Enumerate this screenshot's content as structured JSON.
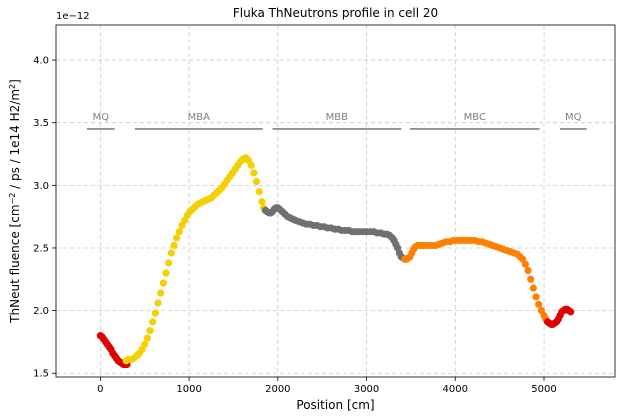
{
  "chart_data": {
    "type": "scatter",
    "title": "Fluka ThNeutrons profile in cell 20",
    "xlabel": "Position [cm]",
    "ylabel_parts": [
      "ThNeut fluence [cm",
      "−2",
      " / ps / 1e14 H2/m",
      "2",
      "]"
    ],
    "y_offset_text": "1e−12",
    "xlim": [
      -500,
      5800
    ],
    "ylim": [
      1.47,
      4.28
    ],
    "x_ticks": [
      0,
      1000,
      2000,
      3000,
      4000,
      5000
    ],
    "y_ticks": [
      1.5,
      2.0,
      2.5,
      3.0,
      3.5,
      4.0
    ],
    "grid": true,
    "regions": [
      {
        "label": "MQ",
        "x0": -150,
        "x1": 160,
        "y": 3.45
      },
      {
        "label": "MBA",
        "x0": 390,
        "x1": 1830,
        "y": 3.45
      },
      {
        "label": "MBB",
        "x0": 1940,
        "x1": 3390,
        "y": 3.45
      },
      {
        "label": "MBC",
        "x0": 3490,
        "x1": 4950,
        "y": 3.45
      },
      {
        "label": "MQ",
        "x0": 5180,
        "x1": 5480,
        "y": 3.45
      }
    ],
    "series": [
      {
        "color": "#e00000",
        "points": [
          [
            0,
            1.8
          ],
          [
            20,
            1.79
          ],
          [
            40,
            1.77
          ],
          [
            60,
            1.75
          ],
          [
            80,
            1.73
          ],
          [
            100,
            1.71
          ],
          [
            120,
            1.69
          ],
          [
            140,
            1.66
          ],
          [
            160,
            1.64
          ],
          [
            180,
            1.62
          ],
          [
            200,
            1.6
          ],
          [
            220,
            1.59
          ],
          [
            240,
            1.58
          ],
          [
            260,
            1.57
          ],
          [
            280,
            1.57
          ],
          [
            300,
            1.57
          ]
        ]
      },
      {
        "color": "#f5d000",
        "points": [
          [
            290,
            1.6
          ],
          [
            320,
            1.61
          ],
          [
            350,
            1.61
          ],
          [
            380,
            1.62
          ],
          [
            410,
            1.64
          ],
          [
            440,
            1.66
          ],
          [
            470,
            1.69
          ],
          [
            500,
            1.73
          ],
          [
            530,
            1.78
          ],
          [
            560,
            1.84
          ],
          [
            590,
            1.91
          ],
          [
            620,
            1.98
          ],
          [
            650,
            2.06
          ],
          [
            680,
            2.14
          ],
          [
            710,
            2.22
          ],
          [
            740,
            2.3
          ],
          [
            770,
            2.38
          ],
          [
            800,
            2.46
          ],
          [
            830,
            2.52
          ],
          [
            860,
            2.58
          ],
          [
            890,
            2.63
          ],
          [
            920,
            2.68
          ],
          [
            950,
            2.72
          ],
          [
            980,
            2.76
          ],
          [
            1010,
            2.79
          ],
          [
            1040,
            2.81
          ],
          [
            1070,
            2.83
          ],
          [
            1100,
            2.85
          ],
          [
            1130,
            2.86
          ],
          [
            1160,
            2.87
          ],
          [
            1190,
            2.88
          ],
          [
            1220,
            2.89
          ],
          [
            1250,
            2.9
          ],
          [
            1280,
            2.92
          ],
          [
            1310,
            2.94
          ],
          [
            1340,
            2.96
          ],
          [
            1370,
            2.98
          ],
          [
            1400,
            3.01
          ],
          [
            1430,
            3.04
          ],
          [
            1460,
            3.07
          ],
          [
            1490,
            3.1
          ],
          [
            1520,
            3.13
          ],
          [
            1550,
            3.16
          ],
          [
            1580,
            3.19
          ],
          [
            1610,
            3.21
          ],
          [
            1640,
            3.22
          ],
          [
            1670,
            3.2
          ],
          [
            1700,
            3.16
          ],
          [
            1730,
            3.1
          ],
          [
            1760,
            3.03
          ],
          [
            1790,
            2.95
          ],
          [
            1820,
            2.87
          ],
          [
            1840,
            2.82
          ]
        ]
      },
      {
        "color": "#707070",
        "points": [
          [
            1860,
            2.8
          ],
          [
            1880,
            2.79
          ],
          [
            1900,
            2.78
          ],
          [
            1920,
            2.78
          ],
          [
            1940,
            2.79
          ],
          [
            1960,
            2.81
          ],
          [
            1980,
            2.82
          ],
          [
            2000,
            2.82
          ],
          [
            2020,
            2.81
          ],
          [
            2050,
            2.79
          ],
          [
            2080,
            2.77
          ],
          [
            2110,
            2.75
          ],
          [
            2140,
            2.74
          ],
          [
            2170,
            2.73
          ],
          [
            2200,
            2.72
          ],
          [
            2240,
            2.71
          ],
          [
            2280,
            2.7
          ],
          [
            2320,
            2.69
          ],
          [
            2360,
            2.69
          ],
          [
            2400,
            2.68
          ],
          [
            2440,
            2.68
          ],
          [
            2480,
            2.67
          ],
          [
            2520,
            2.67
          ],
          [
            2560,
            2.66
          ],
          [
            2600,
            2.66
          ],
          [
            2640,
            2.65
          ],
          [
            2680,
            2.65
          ],
          [
            2720,
            2.64
          ],
          [
            2760,
            2.64
          ],
          [
            2800,
            2.64
          ],
          [
            2840,
            2.63
          ],
          [
            2880,
            2.63
          ],
          [
            2920,
            2.63
          ],
          [
            2960,
            2.63
          ],
          [
            3000,
            2.63
          ],
          [
            3040,
            2.63
          ],
          [
            3080,
            2.63
          ],
          [
            3120,
            2.62
          ],
          [
            3160,
            2.62
          ],
          [
            3200,
            2.61
          ],
          [
            3230,
            2.61
          ],
          [
            3260,
            2.6
          ],
          [
            3290,
            2.58
          ],
          [
            3310,
            2.56
          ],
          [
            3330,
            2.53
          ],
          [
            3350,
            2.5
          ],
          [
            3370,
            2.46
          ],
          [
            3390,
            2.43
          ],
          [
            3410,
            2.42
          ]
        ]
      },
      {
        "color": "#ff8000",
        "points": [
          [
            3430,
            2.41
          ],
          [
            3450,
            2.41
          ],
          [
            3470,
            2.42
          ],
          [
            3490,
            2.43
          ],
          [
            3510,
            2.46
          ],
          [
            3530,
            2.49
          ],
          [
            3550,
            2.51
          ],
          [
            3580,
            2.52
          ],
          [
            3610,
            2.52
          ],
          [
            3640,
            2.52
          ],
          [
            3670,
            2.52
          ],
          [
            3700,
            2.52
          ],
          [
            3740,
            2.52
          ],
          [
            3780,
            2.52
          ],
          [
            3820,
            2.53
          ],
          [
            3860,
            2.54
          ],
          [
            3900,
            2.55
          ],
          [
            3940,
            2.55
          ],
          [
            3980,
            2.56
          ],
          [
            4020,
            2.56
          ],
          [
            4060,
            2.56
          ],
          [
            4100,
            2.56
          ],
          [
            4140,
            2.56
          ],
          [
            4180,
            2.56
          ],
          [
            4220,
            2.56
          ],
          [
            4260,
            2.55
          ],
          [
            4300,
            2.55
          ],
          [
            4340,
            2.54
          ],
          [
            4380,
            2.53
          ],
          [
            4420,
            2.52
          ],
          [
            4460,
            2.51
          ],
          [
            4500,
            2.5
          ],
          [
            4540,
            2.49
          ],
          [
            4580,
            2.48
          ],
          [
            4620,
            2.47
          ],
          [
            4660,
            2.46
          ],
          [
            4700,
            2.45
          ],
          [
            4730,
            2.43
          ],
          [
            4760,
            2.41
          ],
          [
            4790,
            2.37
          ],
          [
            4820,
            2.32
          ],
          [
            4850,
            2.25
          ],
          [
            4880,
            2.18
          ],
          [
            4910,
            2.11
          ],
          [
            4940,
            2.05
          ],
          [
            4970,
            2.0
          ],
          [
            5000,
            1.96
          ],
          [
            5020,
            1.93
          ]
        ]
      },
      {
        "color": "#e00000",
        "points": [
          [
            5040,
            1.91
          ],
          [
            5060,
            1.9
          ],
          [
            5080,
            1.89
          ],
          [
            5100,
            1.89
          ],
          [
            5120,
            1.9
          ],
          [
            5140,
            1.91
          ],
          [
            5160,
            1.93
          ],
          [
            5180,
            1.96
          ],
          [
            5200,
            1.99
          ],
          [
            5220,
            2.0
          ],
          [
            5240,
            2.01
          ],
          [
            5260,
            2.01
          ],
          [
            5280,
            2.0
          ],
          [
            5300,
            1.99
          ]
        ]
      }
    ]
  }
}
